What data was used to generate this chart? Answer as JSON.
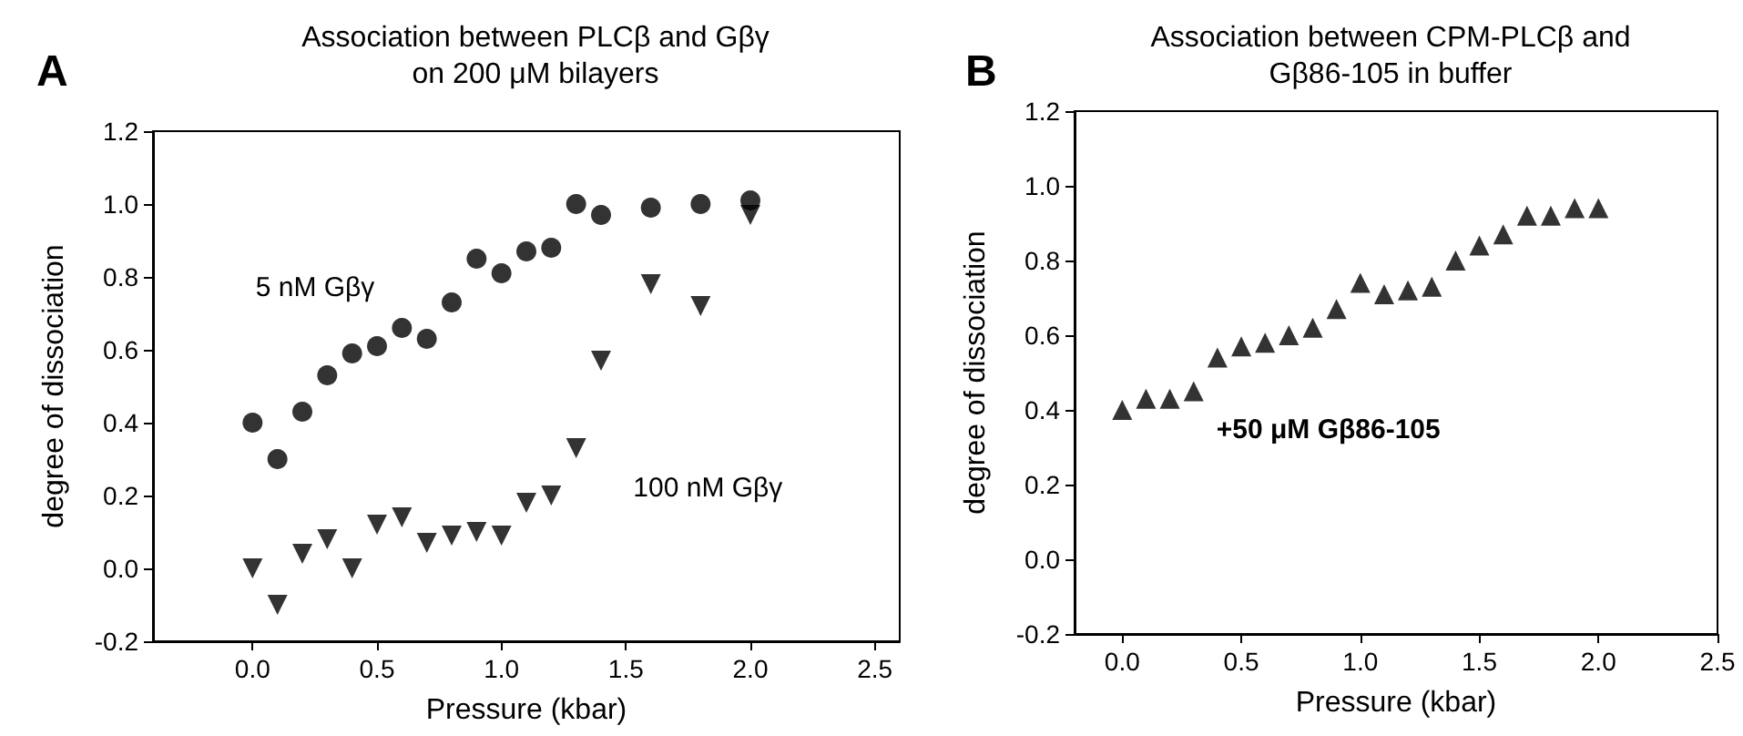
{
  "chart_data": [
    {
      "type": "scatter",
      "title": "Association between PLCβ and Gβγ\non 200 μM bilayers",
      "xlabel": "Pressure (kbar)",
      "ylabel": "degree of dissociation",
      "annotations": [
        "A"
      ],
      "xlim": [
        -0.4,
        2.6
      ],
      "ylim": [
        -0.2,
        1.2
      ],
      "xticks": [
        {
          "value": 0,
          "label": "0.0"
        },
        {
          "value": 0.5,
          "label": "0.5"
        },
        {
          "value": 1,
          "label": "1.0"
        },
        {
          "value": 1.5,
          "label": "1.5"
        },
        {
          "value": 2,
          "label": "2.0"
        },
        {
          "value": 2.5,
          "label": "2.5"
        }
      ],
      "yticks": [
        {
          "value": -0.2,
          "label": "-0.2"
        },
        {
          "value": 0,
          "label": "0.0"
        },
        {
          "value": 0.2,
          "label": "0.2"
        },
        {
          "value": 0.4,
          "label": "0.4"
        },
        {
          "value": 0.6,
          "label": "0.6"
        },
        {
          "value": 0.8,
          "label": "0.8"
        },
        {
          "value": 1,
          "label": "1.0"
        },
        {
          "value": 1.2,
          "label": "1.2"
        }
      ],
      "grid": false,
      "legend": false,
      "series": [
        {
          "name": "5 nM Gβγ",
          "color": "#000000",
          "marker": "circle",
          "x": [
            0,
            0.1,
            0.2,
            0.3,
            0.4,
            0.5,
            0.6,
            0.7,
            0.8,
            0.9,
            1.0,
            1.1,
            1.2,
            1.3,
            1.4,
            1.6,
            1.8,
            2.0
          ],
          "values": [
            0.4,
            0.3,
            0.43,
            0.53,
            0.59,
            0.61,
            0.66,
            0.63,
            0.73,
            0.85,
            0.81,
            0.87,
            0.88,
            1.0,
            0.97,
            0.99,
            1.0,
            1.01
          ]
        },
        {
          "name": "100 nM Gβγ",
          "color": "#000000",
          "marker": "triangle-down",
          "x": [
            0,
            0.1,
            0.2,
            0.3,
            0.4,
            0.5,
            0.6,
            0.7,
            0.8,
            0.9,
            1.0,
            1.1,
            1.2,
            1.3,
            1.4,
            1.6,
            1.8,
            2.0
          ],
          "values": [
            0.0,
            -0.1,
            0.04,
            0.08,
            0.0,
            0.12,
            0.14,
            0.07,
            0.09,
            0.1,
            0.09,
            0.18,
            0.2,
            0.33,
            0.57,
            0.78,
            0.72,
            0.97
          ]
        }
      ]
    },
    {
      "type": "scatter",
      "title": "Association between CPM-PLCβ and\nGβ86-105 in buffer",
      "xlabel": "Pressure (kbar)",
      "ylabel": "degree of dissociation",
      "annotations": [
        "B"
      ],
      "xlim": [
        -0.2,
        2.5
      ],
      "ylim": [
        -0.2,
        1.2
      ],
      "xticks": [
        {
          "value": 0,
          "label": "0.0"
        },
        {
          "value": 0.5,
          "label": "0.5"
        },
        {
          "value": 1,
          "label": "1.0"
        },
        {
          "value": 1.5,
          "label": "1.5"
        },
        {
          "value": 2,
          "label": "2.0"
        },
        {
          "value": 2.5,
          "label": "2.5"
        }
      ],
      "yticks": [
        {
          "value": -0.2,
          "label": "-0.2"
        },
        {
          "value": 0,
          "label": "0.0"
        },
        {
          "value": 0.2,
          "label": "0.2"
        },
        {
          "value": 0.4,
          "label": "0.4"
        },
        {
          "value": 0.6,
          "label": "0.6"
        },
        {
          "value": 0.8,
          "label": "0.8"
        },
        {
          "value": 1,
          "label": "1.0"
        },
        {
          "value": 1.2,
          "label": "1.2"
        }
      ],
      "grid": false,
      "legend": false,
      "series": [
        {
          "name": "+50 μM Gβ86-105",
          "color": "#000000",
          "marker": "triangle",
          "x": [
            0,
            0.1,
            0.2,
            0.3,
            0.4,
            0.5,
            0.6,
            0.7,
            0.8,
            0.9,
            1.0,
            1.1,
            1.2,
            1.3,
            1.4,
            1.5,
            1.6,
            1.7,
            1.8,
            1.9,
            2.0
          ],
          "values": [
            0.4,
            0.43,
            0.43,
            0.45,
            0.54,
            0.57,
            0.58,
            0.6,
            0.62,
            0.67,
            0.74,
            0.71,
            0.72,
            0.73,
            0.8,
            0.84,
            0.87,
            0.92,
            0.92,
            0.94,
            0.94
          ]
        }
      ]
    }
  ]
}
